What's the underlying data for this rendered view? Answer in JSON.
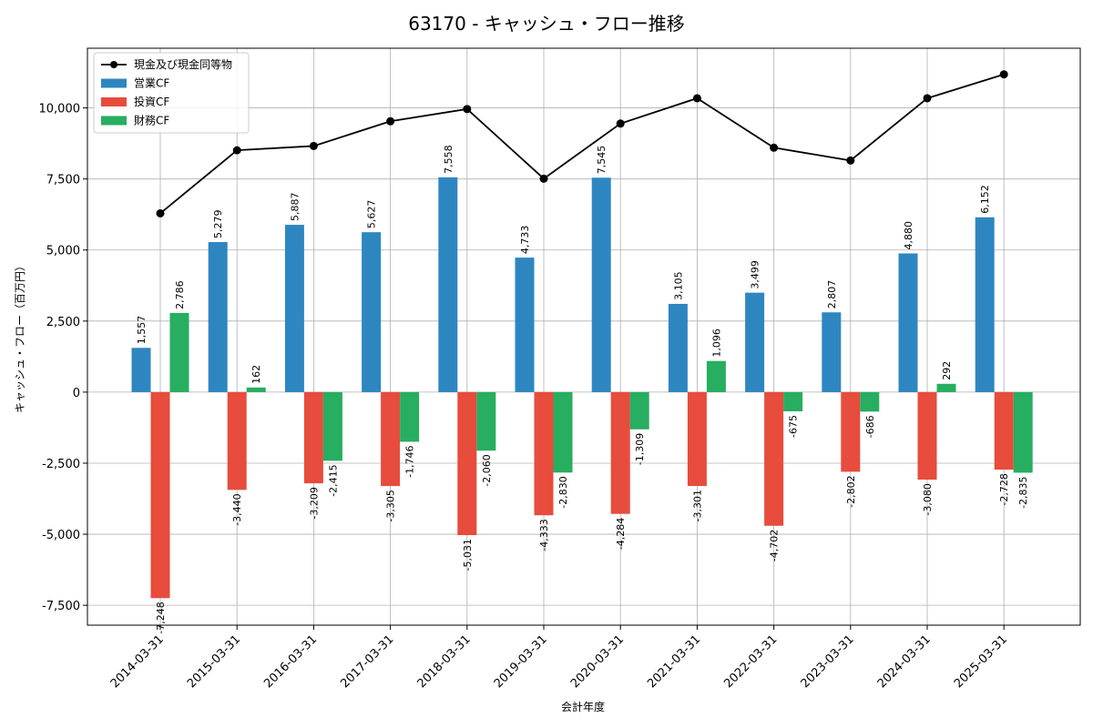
{
  "chart_data": {
    "type": "bar",
    "title": "63170 - キャッシュ・フロー推移",
    "xlabel": "会計年度",
    "ylabel": "キャッシュ・フロー（百万円）",
    "categories": [
      "2014-03-31",
      "2015-03-31",
      "2016-03-31",
      "2017-03-31",
      "2018-03-31",
      "2019-03-31",
      "2020-03-31",
      "2021-03-31",
      "2022-03-31",
      "2023-03-31",
      "2024-03-31",
      "2025-03-31"
    ],
    "series": [
      {
        "name": "営業CF",
        "kind": "bar",
        "color": "#2e86c1",
        "values": [
          1557,
          5279,
          5887,
          5627,
          7558,
          4733,
          7545,
          3105,
          3499,
          2807,
          4880,
          6152
        ],
        "labels": [
          "1,557",
          "5,279",
          "5,887",
          "5,627",
          "7,558",
          "4,733",
          "7,545",
          "3,105",
          "3,499",
          "2,807",
          "4,880",
          "6,152"
        ]
      },
      {
        "name": "投資CF",
        "kind": "bar",
        "color": "#e74c3c",
        "values": [
          -7248,
          -3440,
          -3209,
          -3305,
          -5031,
          -4333,
          -4284,
          -3301,
          -4702,
          -2802,
          -3080,
          -2728
        ],
        "labels": [
          "-7,248",
          "-3,440",
          "-3,209",
          "-3,305",
          "-5,031",
          "-4,333",
          "-4,284",
          "-3,301",
          "-4,702",
          "-2,802",
          "-3,080",
          "-2,728"
        ]
      },
      {
        "name": "財務CF",
        "kind": "bar",
        "color": "#27ae60",
        "values": [
          2786,
          162,
          -2415,
          -1746,
          -2060,
          -2830,
          -1309,
          1096,
          -675,
          -686,
          292,
          -2835
        ],
        "labels": [
          "2,786",
          "162",
          "-2,415",
          "-1,746",
          "-2,060",
          "-2,830",
          "-1,309",
          "1,096",
          "-675",
          "-686",
          "292",
          "-2,835"
        ]
      },
      {
        "name": "現金及び現金同等物",
        "kind": "line",
        "color": "#000000",
        "values": [
          6290,
          8510,
          8660,
          9530,
          9960,
          7510,
          9450,
          10340,
          8600,
          8150,
          10340,
          11180
        ]
      }
    ],
    "legend_order": [
      3,
      0,
      1,
      2
    ],
    "legend_position": "top-left",
    "ylim": [
      -8200,
      12100
    ],
    "yticks": [
      -7500,
      -5000,
      -2500,
      0,
      2500,
      5000,
      7500,
      10000
    ],
    "ytick_labels": [
      "-7,500",
      "-5,000",
      "-2,500",
      "0",
      "2,500",
      "5,000",
      "7,500",
      "10,000"
    ],
    "grid": true
  }
}
